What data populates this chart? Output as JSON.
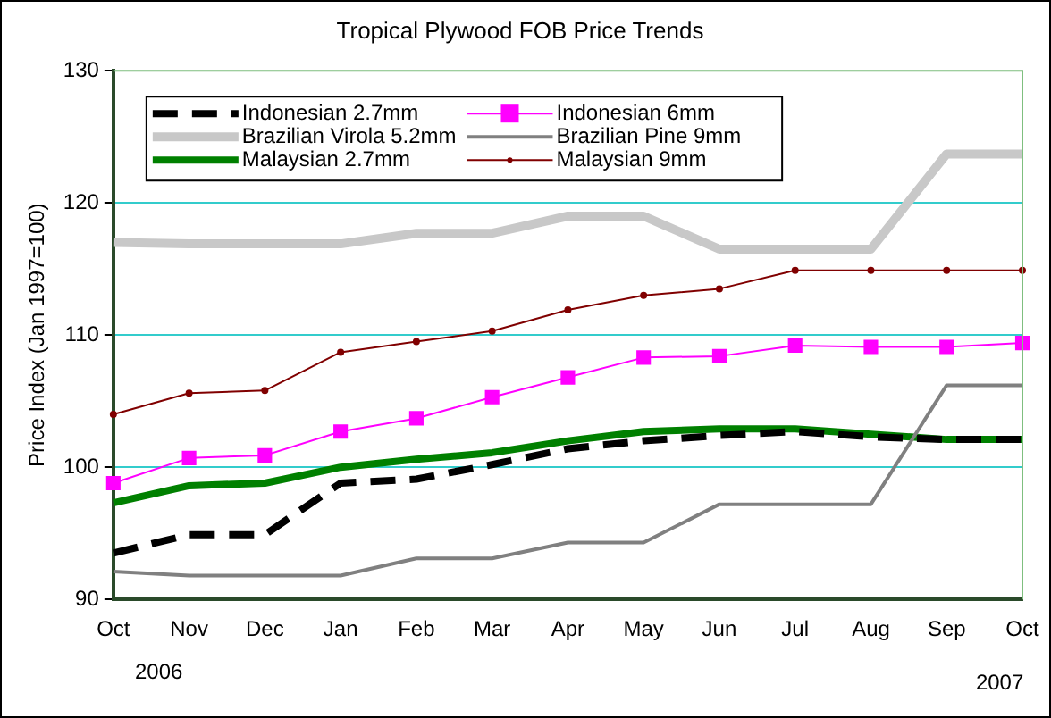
{
  "chart_data": {
    "type": "line",
    "title": "Tropical Plywood FOB Price Trends",
    "ylabel": "Price Index (Jan 1997=100)",
    "categories": [
      "Oct",
      "Nov",
      "Dec",
      "Jan",
      "Feb",
      "Mar",
      "Apr",
      "May",
      "Jun",
      "Jul",
      "Aug",
      "Sep",
      "Oct"
    ],
    "ylim": [
      90,
      130
    ],
    "yticks": [
      90,
      100,
      110,
      120,
      130
    ],
    "grid": "y",
    "legend": "top",
    "annotations": [
      "2006",
      "2007"
    ],
    "series": [
      {
        "name": "Indonesian 2.7mm",
        "color": "#000000",
        "line_style": "dashed",
        "marker": "none",
        "values": [
          93.5,
          94.9,
          94.9,
          98.8,
          99.1,
          100.2,
          101.4,
          102.0,
          102.4,
          102.7,
          102.3,
          102.1,
          102.1
        ]
      },
      {
        "name": "Indonesian 6mm",
        "color": "#ff00ff",
        "line_style": "solid",
        "marker": "square",
        "values": [
          98.8,
          100.7,
          100.9,
          102.7,
          103.7,
          105.3,
          106.8,
          108.3,
          108.4,
          109.2,
          109.1,
          109.1,
          109.4
        ]
      },
      {
        "name": "Brazilian Virola 5.2mm",
        "color": "#c8c8c8",
        "line_style": "solid",
        "marker": "none",
        "values": [
          117.0,
          116.9,
          116.9,
          116.9,
          117.7,
          117.7,
          119.0,
          119.0,
          116.5,
          116.5,
          116.5,
          123.7,
          123.7
        ]
      },
      {
        "name": "Brazilian Pine 9mm",
        "color": "#808080",
        "line_style": "solid",
        "marker": "none",
        "values": [
          92.1,
          91.8,
          91.8,
          91.8,
          93.1,
          93.1,
          94.3,
          94.3,
          97.2,
          97.2,
          97.2,
          106.2,
          106.2
        ]
      },
      {
        "name": "Malaysian 2.7mm",
        "color": "#008000",
        "line_style": "solid",
        "marker": "none",
        "values": [
          97.3,
          98.6,
          98.8,
          100.0,
          100.6,
          101.1,
          102.0,
          102.7,
          102.9,
          102.9,
          102.5,
          102.1,
          102.1
        ]
      },
      {
        "name": "Malaysian 9mm",
        "color": "#800000",
        "line_style": "solid",
        "marker": "circle",
        "values": [
          104.0,
          105.6,
          105.8,
          108.7,
          109.5,
          110.3,
          111.9,
          113.0,
          113.5,
          114.9,
          114.9,
          114.9,
          114.9
        ]
      }
    ]
  }
}
